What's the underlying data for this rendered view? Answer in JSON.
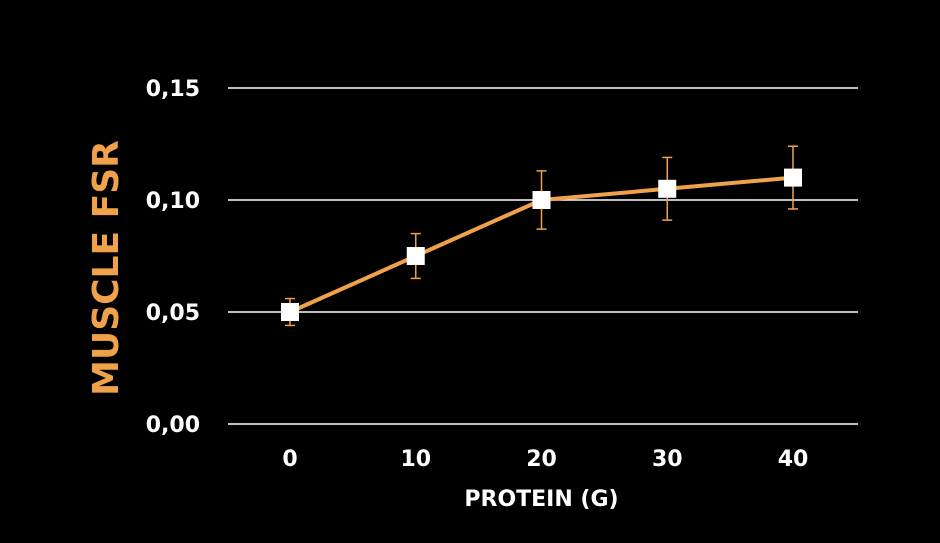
{
  "chart_data": {
    "type": "line",
    "title": "",
    "xlabel": "PROTEIN (G)",
    "ylabel": "MUSCLE FSR",
    "x": [
      0,
      10,
      20,
      30,
      40
    ],
    "x_tick_labels": [
      "0",
      "10",
      "20",
      "30",
      "40"
    ],
    "y_tick_labels": [
      "0,00",
      "0,05",
      "0,10",
      "0,15"
    ],
    "y_ticks": [
      0.0,
      0.05,
      0.1,
      0.15
    ],
    "ylim": [
      0,
      0.15
    ],
    "grid": true,
    "series": [
      {
        "values": [
          0.05,
          0.075,
          0.1,
          0.105,
          0.11
        ],
        "error": [
          0.006,
          0.01,
          0.013,
          0.014,
          0.014
        ]
      }
    ],
    "colors": {
      "background": "#000000",
      "line": "#f0a24a",
      "marker": "#ffffff",
      "grid": "#ffffff",
      "ylabel": "#f0a24a",
      "text": "#ffffff"
    }
  }
}
